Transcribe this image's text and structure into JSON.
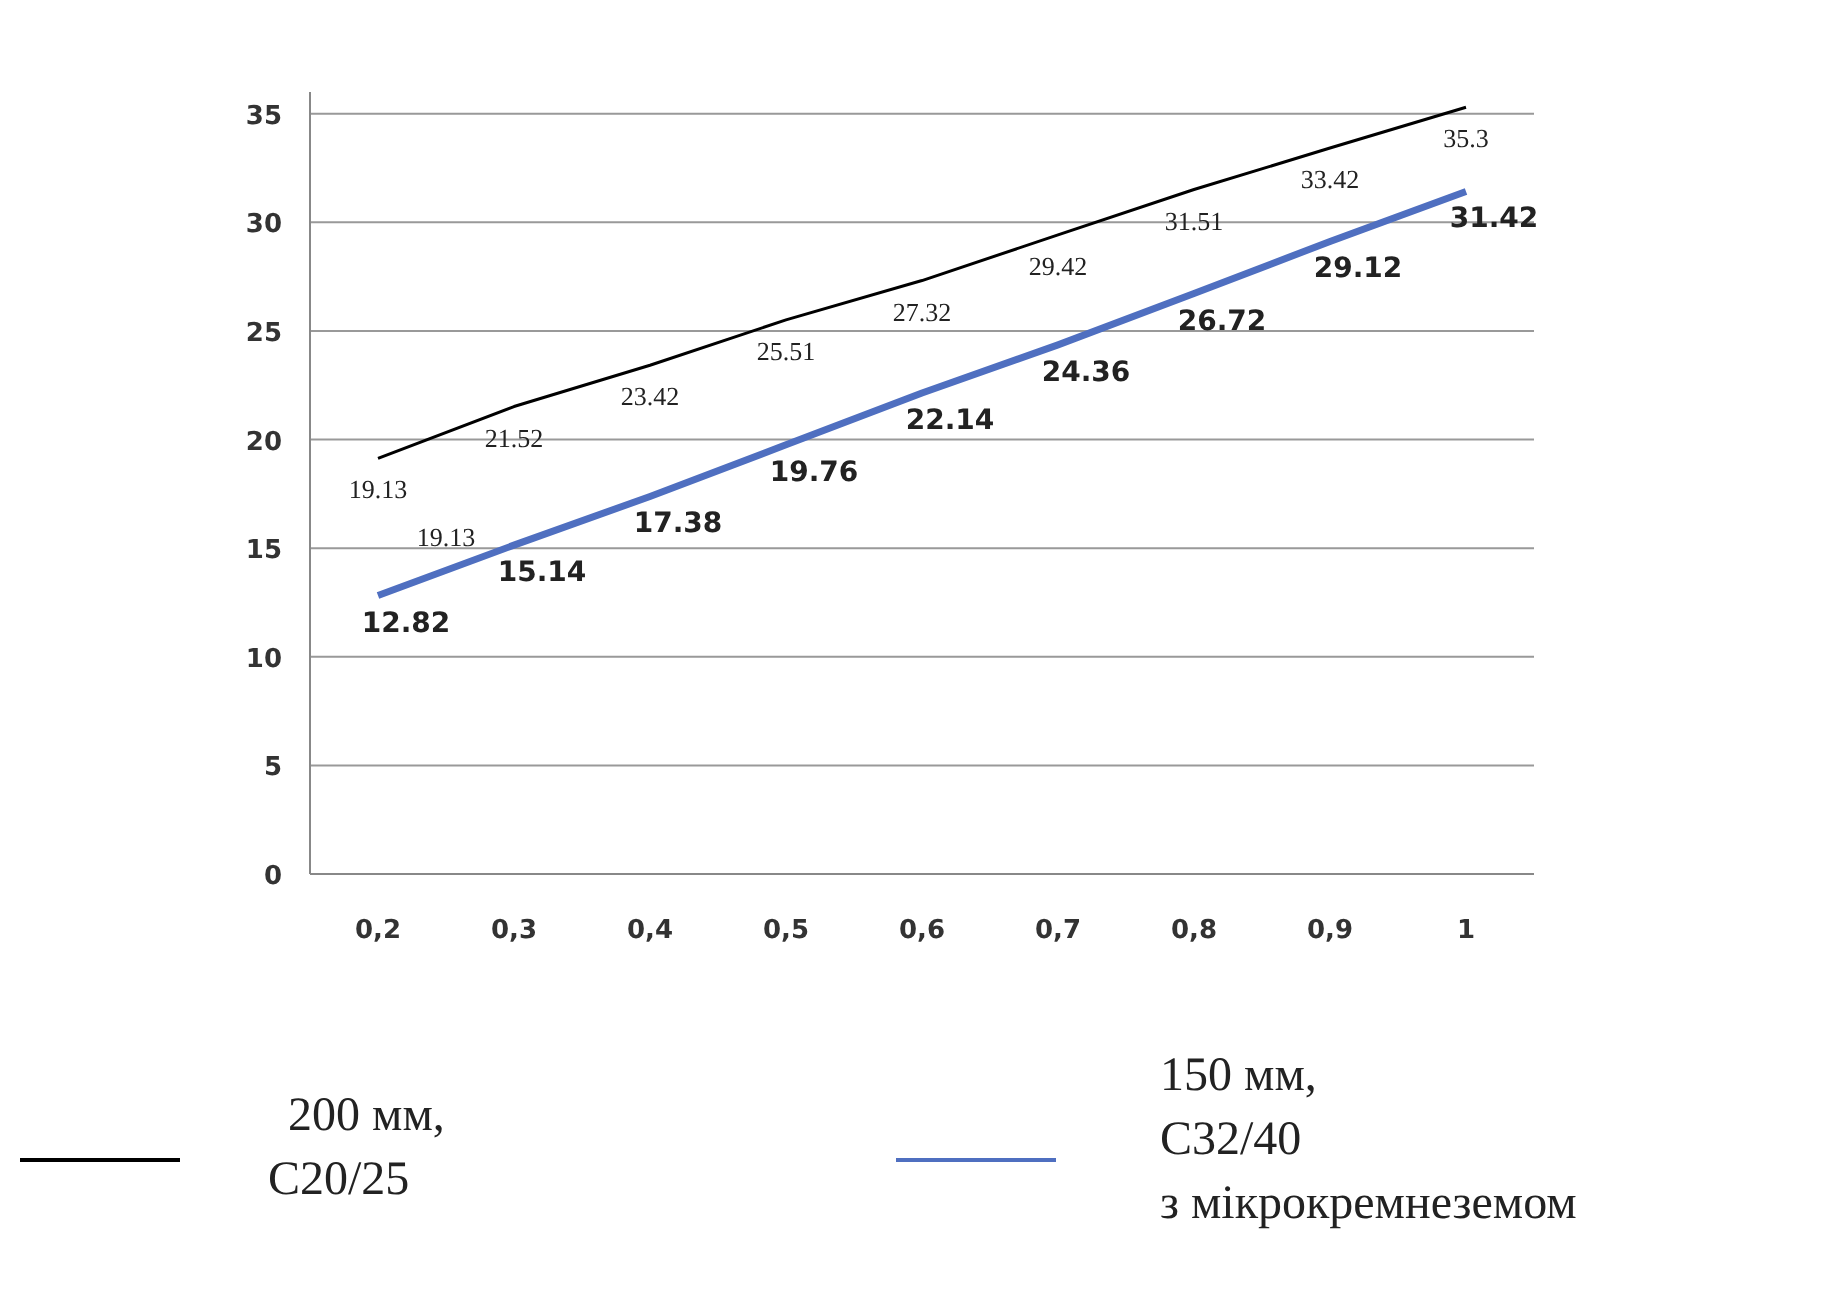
{
  "chart_data": {
    "type": "line",
    "categories": [
      "0,2",
      "0,3",
      "0,4",
      "0,5",
      "0,6",
      "0,7",
      "0,8",
      "0,9",
      "1"
    ],
    "series": [
      {
        "name": "200 мм,\nC20/25",
        "color": "#000000",
        "values": [
          19.13,
          21.52,
          23.42,
          25.51,
          27.32,
          29.42,
          31.51,
          33.42,
          35.3
        ]
      },
      {
        "name": "150 мм,\nC32/40\nз мікрокремнеземом",
        "color": "#4f6fc0",
        "values": [
          12.82,
          15.14,
          17.38,
          19.76,
          22.14,
          24.36,
          26.72,
          29.12,
          31.42
        ]
      }
    ],
    "ylim": [
      0,
      36
    ],
    "yticks": [
      0,
      5,
      10,
      15,
      20,
      25,
      30,
      35
    ],
    "grid": "y",
    "legend": "bottom",
    "data_labels": true,
    "marker": "none",
    "annotations": [
      "19.13"
    ]
  }
}
